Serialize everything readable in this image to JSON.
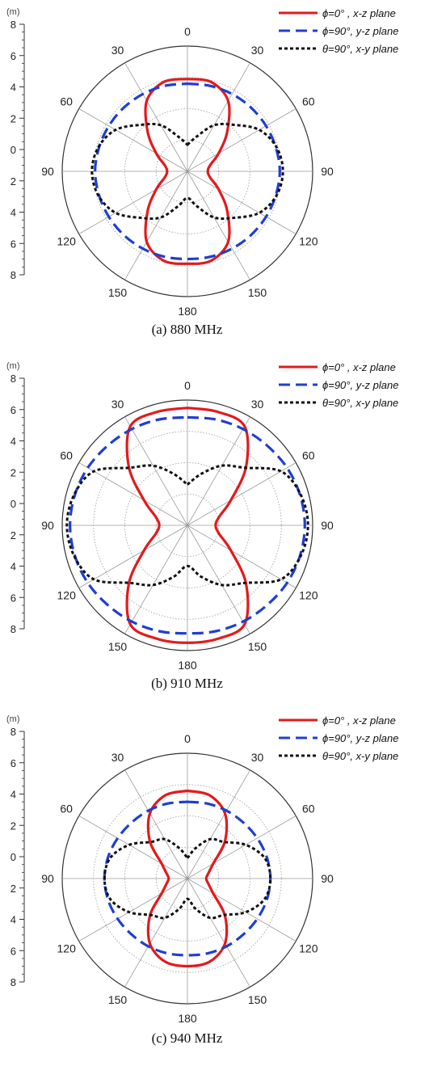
{
  "chart_data": [
    {
      "type": "polar-line",
      "caption": "(a) 880 MHz",
      "unit": "(m)",
      "r_max": 8,
      "r_ticks": [
        0,
        2,
        4,
        6,
        8
      ],
      "r_axis_labels": [
        "8",
        "6",
        "4",
        "2",
        "0",
        "2",
        "4",
        "6",
        "8"
      ],
      "angle_labels": [
        "0",
        "30",
        "60",
        "90",
        "120",
        "150",
        "180",
        "150",
        "120",
        "90",
        "60",
        "30"
      ],
      "angles_deg": [
        0,
        15,
        30,
        45,
        60,
        75,
        90,
        105,
        120,
        135,
        150,
        165,
        180
      ],
      "series": [
        {
          "name": "ϕ=0° , x-z plane",
          "color": "#e31a1c",
          "dash": "solid",
          "values": [
            5.9,
            5.9,
            5.2,
            3.6,
            2.3,
            1.5,
            1.3,
            1.5,
            2.3,
            3.6,
            5.2,
            5.9,
            5.9
          ]
        },
        {
          "name": "ϕ=90°, y-z plane",
          "color": "#1f3fd0",
          "dash": "dash",
          "values": [
            5.6,
            5.65,
            5.7,
            5.75,
            5.8,
            5.85,
            5.9,
            5.85,
            5.8,
            5.75,
            5.7,
            5.65,
            5.6
          ]
        },
        {
          "name": "θ=90°, x-y plane",
          "color": "#111111",
          "dash": "dot",
          "values": [
            1.7,
            2.3,
            3.4,
            4.2,
            5.3,
            5.9,
            6.1,
            5.9,
            5.3,
            4.2,
            3.4,
            2.3,
            1.7
          ]
        }
      ]
    },
    {
      "type": "polar-line",
      "caption": "(b) 910 MHz",
      "unit": "(m)",
      "r_max": 8,
      "r_ticks": [
        0,
        2,
        4,
        6,
        8
      ],
      "r_axis_labels": [
        "8",
        "6",
        "4",
        "2",
        "0",
        "2",
        "4",
        "6",
        "8"
      ],
      "angle_labels": [
        "0",
        "30",
        "60",
        "90",
        "120",
        "150",
        "180",
        "150",
        "120",
        "90",
        "60",
        "30"
      ],
      "angles_deg": [
        0,
        15,
        30,
        45,
        60,
        75,
        90,
        105,
        120,
        135,
        150,
        165,
        180
      ],
      "series": [
        {
          "name": "ϕ=0° , x-z plane",
          "color": "#e31a1c",
          "dash": "solid",
          "values": [
            7.5,
            7.5,
            7.3,
            5.3,
            3.2,
            2.1,
            1.8,
            2.1,
            3.2,
            5.3,
            7.3,
            7.5,
            7.5
          ]
        },
        {
          "name": "ϕ=90°, y-z plane",
          "color": "#1f3fd0",
          "dash": "dash",
          "values": [
            6.9,
            7.0,
            7.1,
            7.2,
            7.35,
            7.45,
            7.5,
            7.45,
            7.35,
            7.2,
            7.1,
            7.0,
            6.9
          ]
        },
        {
          "name": "θ=90°, x-y plane",
          "color": "#111111",
          "dash": "dot",
          "values": [
            2.6,
            3.4,
            4.4,
            5.2,
            6.9,
            7.5,
            7.7,
            7.5,
            6.9,
            5.2,
            4.4,
            3.4,
            2.6
          ]
        }
      ]
    },
    {
      "type": "polar-line",
      "caption": "(c) 940 MHz",
      "unit": "(m)",
      "r_max": 8,
      "r_ticks": [
        0,
        2,
        4,
        6,
        8
      ],
      "r_axis_labels": [
        "8",
        "6",
        "4",
        "2",
        "0",
        "2",
        "4",
        "6",
        "8"
      ],
      "angle_labels": [
        "0",
        "30",
        "60",
        "90",
        "120",
        "150",
        "180",
        "150",
        "120",
        "90",
        "60",
        "30"
      ],
      "angles_deg": [
        0,
        15,
        30,
        45,
        60,
        75,
        90,
        105,
        120,
        135,
        150,
        165,
        180
      ],
      "series": [
        {
          "name": "ϕ=0° , x-z plane",
          "color": "#e31a1c",
          "dash": "solid",
          "values": [
            5.6,
            5.5,
            4.8,
            3.4,
            1.9,
            1.4,
            1.2,
            1.4,
            1.9,
            3.4,
            4.8,
            5.5,
            5.6
          ]
        },
        {
          "name": "ϕ=90°, y-z plane",
          "color": "#1f3fd0",
          "dash": "dash",
          "values": [
            4.9,
            4.95,
            5.0,
            5.05,
            5.15,
            5.25,
            5.3,
            5.25,
            5.15,
            5.05,
            5.0,
            4.95,
            4.9
          ]
        },
        {
          "name": "θ=90°, x-y plane",
          "color": "#111111",
          "dash": "dot",
          "values": [
            1.3,
            2.0,
            2.9,
            3.3,
            4.3,
            5.1,
            5.3,
            5.1,
            4.3,
            3.3,
            2.9,
            2.0,
            1.3
          ]
        }
      ]
    }
  ]
}
